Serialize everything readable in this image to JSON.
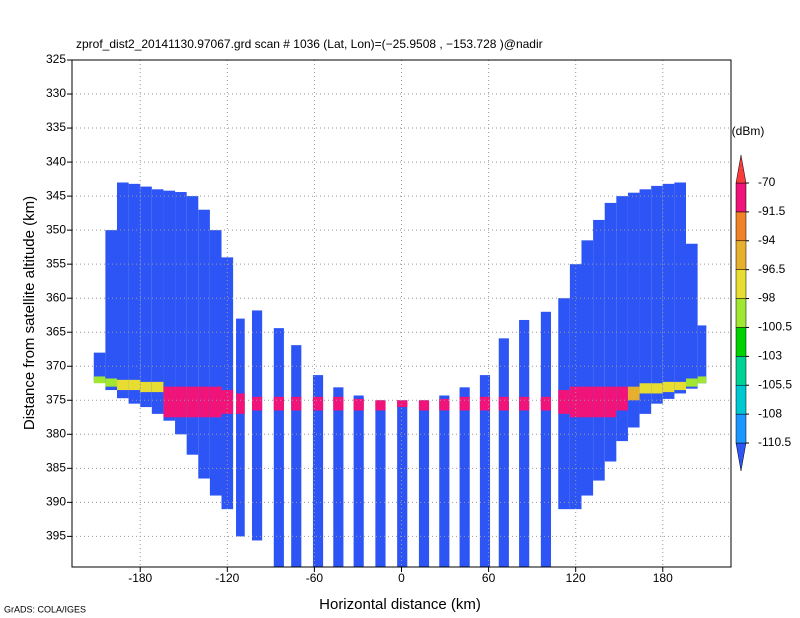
{
  "chart_data": {
    "type": "profile",
    "title": "zprof_dist2_20141130.97067.grd  scan # 1036  (Lat, Lon)=(−25.9508 , −153.728 )@nadir",
    "x_label": "Horizontal distance (km)",
    "y_label": "Distance from satellite altitude (km)",
    "colorbar_title": "(dBm)",
    "footer": "GrADS: COLA/IGES",
    "xlim": [
      -227,
      227
    ],
    "ylim": [
      325,
      399.5
    ],
    "xticks": [
      -180,
      -120,
      -60,
      0,
      60,
      120,
      180
    ],
    "yticks": [
      325,
      330,
      335,
      340,
      345,
      350,
      355,
      360,
      365,
      370,
      375,
      380,
      385,
      390,
      395
    ],
    "grid": true,
    "levels": [
      -110.5,
      -108,
      -105.5,
      -103,
      -100.5,
      -98,
      -96.5,
      -94,
      -91.5,
      -70
    ],
    "colors": [
      "#2d55f5",
      "#1e96ff",
      "#00c8d2",
      "#00d296",
      "#00d200",
      "#a0e632",
      "#e6dc32",
      "#e6af2d",
      "#f08228",
      "#f0147a",
      "#fa3c3c"
    ],
    "background_dbm": -112,
    "columns": [
      {
        "x": [
          -212,
          -204
        ],
        "top": 368,
        "bottom": 372.3,
        "echo": [
          371.5,
          372.5
        ],
        "dbm": -100
      },
      {
        "x": [
          -204,
          -196
        ],
        "top": 350,
        "bottom": 373.5,
        "echo": [
          371.8,
          373
        ],
        "dbm": -100
      },
      {
        "x": [
          -196,
          -188
        ],
        "top": 343,
        "bottom": 374.7,
        "echo": [
          372,
          373.5
        ],
        "dbm": -97
      },
      {
        "x": [
          -188,
          -180
        ],
        "top": 343.2,
        "bottom": 375.5,
        "echo": [
          372,
          373.5
        ],
        "dbm": -97
      },
      {
        "x": [
          -180,
          -172
        ],
        "top": 343.6,
        "bottom": 376,
        "echo": [
          372.3,
          373.8
        ],
        "dbm": -97
      },
      {
        "x": [
          -172,
          -164
        ],
        "top": 344,
        "bottom": 377,
        "echo": [
          372.3,
          373.8
        ],
        "dbm": -97
      },
      {
        "x": [
          -164,
          -156
        ],
        "top": 344.2,
        "bottom": 378,
        "echo": [
          373,
          377.5
        ],
        "dbm": -85
      },
      {
        "x": [
          -156,
          -148
        ],
        "top": 344.4,
        "bottom": 380,
        "echo": [
          373,
          377.5
        ],
        "dbm": -85
      },
      {
        "x": [
          -148,
          -140
        ],
        "top": 345,
        "bottom": 383,
        "echo": [
          373,
          377.5
        ],
        "dbm": -85
      },
      {
        "x": [
          -140,
          -132
        ],
        "top": 347,
        "bottom": 386.5,
        "echo": [
          373,
          377.5
        ],
        "dbm": -85
      },
      {
        "x": [
          -132,
          -124
        ],
        "top": 350,
        "bottom": 389,
        "echo": [
          373,
          377.5
        ],
        "dbm": -85
      },
      {
        "x": [
          -124,
          -116
        ],
        "top": 354,
        "bottom": 391,
        "echo": [
          373.5,
          377
        ],
        "dbm": -85
      },
      {
        "x": [
          -114,
          -108
        ],
        "top": 363,
        "bottom": 395,
        "echo": [
          374,
          377
        ],
        "dbm": -85
      },
      {
        "x": [
          -103,
          -96
        ],
        "top": 361.8,
        "bottom": 395.6,
        "echo": [
          374.5,
          376.5
        ],
        "dbm": -85
      },
      {
        "x": [
          -88,
          -81
        ],
        "top": 364.4,
        "bottom": 399.5,
        "echo": [
          374.5,
          376.5
        ],
        "dbm": -85
      },
      {
        "x": [
          -76,
          -69
        ],
        "top": 366.9,
        "bottom": 399.5,
        "echo": [
          374.5,
          376.5
        ],
        "dbm": -85
      },
      {
        "x": [
          -61,
          -54
        ],
        "top": 371.3,
        "bottom": 399.5,
        "echo": [
          374.5,
          376.5
        ],
        "dbm": -85
      },
      {
        "x": [
          -47,
          -40
        ],
        "top": 373.1,
        "bottom": 399.5,
        "echo": [
          374.5,
          376.5
        ],
        "dbm": -85
      },
      {
        "x": [
          -33,
          -26
        ],
        "top": 374.3,
        "bottom": 399.5,
        "echo": [
          374.8,
          376.5
        ],
        "dbm": -85
      },
      {
        "x": [
          -18,
          -11
        ],
        "top": 375,
        "bottom": 399.5,
        "echo": [
          375,
          376.5
        ],
        "dbm": -85
      },
      {
        "x": [
          -3,
          4
        ],
        "top": 375,
        "bottom": 399.5,
        "echo": [
          375,
          376
        ],
        "dbm": -85
      },
      {
        "x": [
          12,
          19
        ],
        "top": 375,
        "bottom": 399.5,
        "echo": [
          375,
          376.5
        ],
        "dbm": -85
      },
      {
        "x": [
          26,
          33
        ],
        "top": 374.3,
        "bottom": 399.5,
        "echo": [
          374.8,
          376.5
        ],
        "dbm": -85
      },
      {
        "x": [
          40,
          47
        ],
        "top": 373.1,
        "bottom": 399.5,
        "echo": [
          374.5,
          376.5
        ],
        "dbm": -85
      },
      {
        "x": [
          54,
          61
        ],
        "top": 371.3,
        "bottom": 399.5,
        "echo": [
          374.5,
          376.5
        ],
        "dbm": -85
      },
      {
        "x": [
          67,
          74
        ],
        "top": 365.9,
        "bottom": 399.5,
        "echo": [
          374.5,
          376.5
        ],
        "dbm": -85
      },
      {
        "x": [
          81,
          88
        ],
        "top": 363.2,
        "bottom": 399.5,
        "echo": [
          374.5,
          376.5
        ],
        "dbm": -85
      },
      {
        "x": [
          96,
          103
        ],
        "top": 362,
        "bottom": 399.5,
        "echo": [
          374.5,
          376.5
        ],
        "dbm": -85
      },
      {
        "x": [
          108,
          116
        ],
        "top": 360,
        "bottom": 391,
        "echo": [
          373.5,
          377
        ],
        "dbm": -85
      },
      {
        "x": [
          116,
          124
        ],
        "top": 355,
        "bottom": 391,
        "echo": [
          373,
          377.5
        ],
        "dbm": -85
      },
      {
        "x": [
          124,
          132
        ],
        "top": 351.5,
        "bottom": 389,
        "echo": [
          373,
          377.5
        ],
        "dbm": -85
      },
      {
        "x": [
          132,
          140
        ],
        "top": 348.5,
        "bottom": 386.8,
        "echo": [
          373,
          377.5
        ],
        "dbm": -85
      },
      {
        "x": [
          140,
          148
        ],
        "top": 346,
        "bottom": 384,
        "echo": [
          373,
          377.5
        ],
        "dbm": -85
      },
      {
        "x": [
          148,
          156
        ],
        "top": 345,
        "bottom": 381,
        "echo": [
          373,
          376.5
        ],
        "dbm": -85
      },
      {
        "x": [
          156,
          164
        ],
        "top": 344.5,
        "bottom": 379,
        "echo": [
          373,
          375
        ],
        "dbm": -95
      },
      {
        "x": [
          164,
          172
        ],
        "top": 344,
        "bottom": 377,
        "echo": [
          372.5,
          374
        ],
        "dbm": -97
      },
      {
        "x": [
          172,
          180
        ],
        "top": 343.5,
        "bottom": 375.5,
        "echo": [
          372.5,
          374
        ],
        "dbm": -97
      },
      {
        "x": [
          180,
          188
        ],
        "top": 343.2,
        "bottom": 374.8,
        "echo": [
          372.3,
          373.8
        ],
        "dbm": -97
      },
      {
        "x": [
          188,
          196
        ],
        "top": 343,
        "bottom": 374,
        "echo": [
          372.3,
          373.5
        ],
        "dbm": -97
      },
      {
        "x": [
          196,
          204
        ],
        "top": 352,
        "bottom": 373.3,
        "echo": [
          371.8,
          373
        ],
        "dbm": -100
      },
      {
        "x": [
          204,
          210
        ],
        "top": 364,
        "bottom": 372.5,
        "echo": [
          371.5,
          372.5
        ],
        "dbm": -100
      }
    ]
  }
}
